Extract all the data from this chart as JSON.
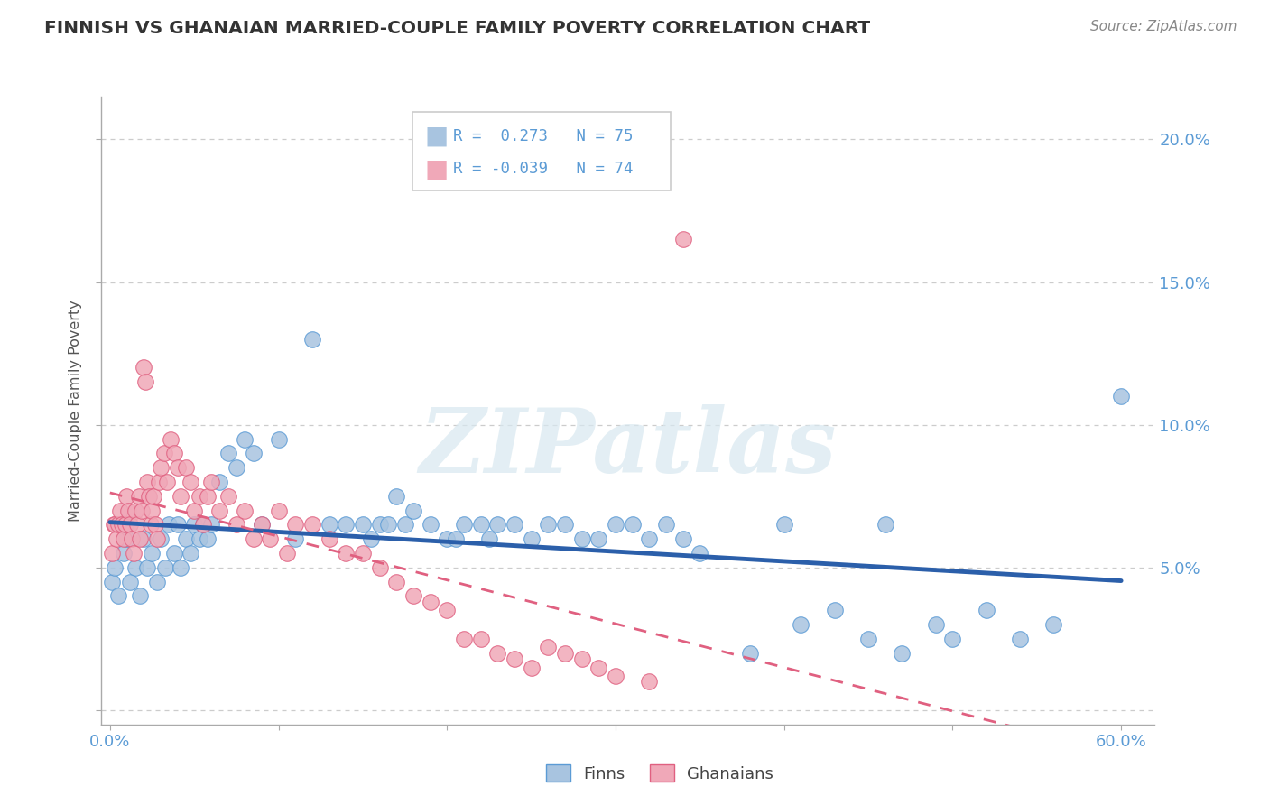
{
  "title": "FINNISH VS GHANAIAN MARRIED-COUPLE FAMILY POVERTY CORRELATION CHART",
  "source": "Source: ZipAtlas.com",
  "ylabel": "Married-Couple Family Poverty",
  "xlim": [
    -0.005,
    0.62
  ],
  "ylim": [
    -0.005,
    0.215
  ],
  "finns_color": "#a8c4e0",
  "finns_edge_color": "#5b9bd5",
  "ghanaians_color": "#f0a8b8",
  "ghanaians_edge_color": "#e06080",
  "finns_line_color": "#2b5faa",
  "ghanaians_line_color": "#e06080",
  "finns_R": 0.273,
  "finns_N": 75,
  "ghanaians_R": -0.039,
  "ghanaians_N": 74,
  "finns_x": [
    0.001,
    0.003,
    0.005,
    0.008,
    0.01,
    0.012,
    0.015,
    0.018,
    0.02,
    0.022,
    0.025,
    0.028,
    0.03,
    0.033,
    0.035,
    0.038,
    0.04,
    0.042,
    0.045,
    0.048,
    0.05,
    0.053,
    0.055,
    0.058,
    0.06,
    0.065,
    0.07,
    0.075,
    0.08,
    0.085,
    0.09,
    0.1,
    0.11,
    0.12,
    0.13,
    0.14,
    0.15,
    0.155,
    0.16,
    0.165,
    0.17,
    0.175,
    0.18,
    0.19,
    0.2,
    0.205,
    0.21,
    0.22,
    0.225,
    0.23,
    0.24,
    0.25,
    0.26,
    0.27,
    0.28,
    0.29,
    0.3,
    0.31,
    0.32,
    0.33,
    0.34,
    0.35,
    0.38,
    0.4,
    0.41,
    0.43,
    0.45,
    0.46,
    0.47,
    0.49,
    0.5,
    0.52,
    0.54,
    0.56,
    0.6
  ],
  "finns_y": [
    0.045,
    0.05,
    0.04,
    0.055,
    0.06,
    0.045,
    0.05,
    0.04,
    0.06,
    0.05,
    0.055,
    0.045,
    0.06,
    0.05,
    0.065,
    0.055,
    0.065,
    0.05,
    0.06,
    0.055,
    0.065,
    0.06,
    0.065,
    0.06,
    0.065,
    0.08,
    0.09,
    0.085,
    0.095,
    0.09,
    0.065,
    0.095,
    0.06,
    0.13,
    0.065,
    0.065,
    0.065,
    0.06,
    0.065,
    0.065,
    0.075,
    0.065,
    0.07,
    0.065,
    0.06,
    0.06,
    0.065,
    0.065,
    0.06,
    0.065,
    0.065,
    0.06,
    0.065,
    0.065,
    0.06,
    0.06,
    0.065,
    0.065,
    0.06,
    0.065,
    0.06,
    0.055,
    0.02,
    0.065,
    0.03,
    0.035,
    0.025,
    0.065,
    0.02,
    0.03,
    0.025,
    0.035,
    0.025,
    0.03,
    0.11
  ],
  "ghanaians_x": [
    0.001,
    0.002,
    0.003,
    0.004,
    0.005,
    0.006,
    0.007,
    0.008,
    0.009,
    0.01,
    0.011,
    0.012,
    0.013,
    0.014,
    0.015,
    0.016,
    0.017,
    0.018,
    0.019,
    0.02,
    0.021,
    0.022,
    0.023,
    0.024,
    0.025,
    0.026,
    0.027,
    0.028,
    0.029,
    0.03,
    0.032,
    0.034,
    0.036,
    0.038,
    0.04,
    0.042,
    0.045,
    0.048,
    0.05,
    0.053,
    0.055,
    0.058,
    0.06,
    0.065,
    0.07,
    0.075,
    0.08,
    0.085,
    0.09,
    0.095,
    0.1,
    0.105,
    0.11,
    0.12,
    0.13,
    0.14,
    0.15,
    0.16,
    0.17,
    0.18,
    0.19,
    0.2,
    0.21,
    0.22,
    0.23,
    0.24,
    0.25,
    0.26,
    0.27,
    0.28,
    0.29,
    0.3,
    0.32,
    0.34
  ],
  "ghanaians_y": [
    0.055,
    0.065,
    0.065,
    0.06,
    0.065,
    0.07,
    0.065,
    0.06,
    0.065,
    0.075,
    0.07,
    0.065,
    0.06,
    0.055,
    0.07,
    0.065,
    0.075,
    0.06,
    0.07,
    0.12,
    0.115,
    0.08,
    0.075,
    0.065,
    0.07,
    0.075,
    0.065,
    0.06,
    0.08,
    0.085,
    0.09,
    0.08,
    0.095,
    0.09,
    0.085,
    0.075,
    0.085,
    0.08,
    0.07,
    0.075,
    0.065,
    0.075,
    0.08,
    0.07,
    0.075,
    0.065,
    0.07,
    0.06,
    0.065,
    0.06,
    0.07,
    0.055,
    0.065,
    0.065,
    0.06,
    0.055,
    0.055,
    0.05,
    0.045,
    0.04,
    0.038,
    0.035,
    0.025,
    0.025,
    0.02,
    0.018,
    0.015,
    0.022,
    0.02,
    0.018,
    0.015,
    0.012,
    0.01,
    0.165
  ],
  "watermark_text": "ZIPatlas",
  "background_color": "#ffffff",
  "grid_color": "#cccccc",
  "title_color": "#333333",
  "tick_label_color": "#5b9bd5",
  "axis_color": "#aaaaaa"
}
